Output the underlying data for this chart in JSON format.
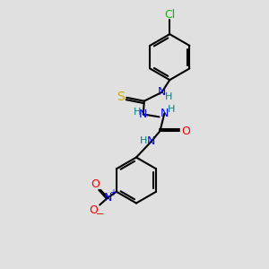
{
  "background_color": "#e0e0e0",
  "atom_colors": {
    "C": "#000000",
    "H": "#008080",
    "N": "#0000ff",
    "O": "#ff0000",
    "S": "#ccaa00",
    "Cl": "#00bb00"
  },
  "figsize": [
    3.0,
    3.0
  ],
  "dpi": 100
}
